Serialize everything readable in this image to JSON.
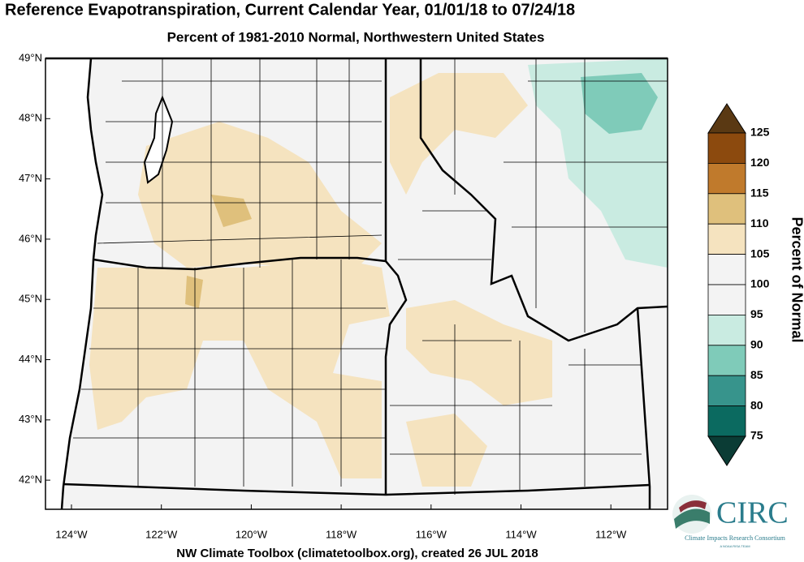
{
  "title": "Reference Evapotranspiration, Current Calendar Year, 01/01/18 to 07/24/18",
  "subtitle": "Percent of 1981-2010 Normal, Northwestern United States",
  "footer": "NW Climate Toolbox (climatetoolbox.org), created 26 JUL 2018",
  "lat_labels": [
    "49°N",
    "48°N",
    "47°N",
    "46°N",
    "45°N",
    "44°N",
    "43°N",
    "42°N"
  ],
  "lon_labels": [
    "124°W",
    "122°W",
    "120°W",
    "118°W",
    "116°W",
    "114°W",
    "112°W"
  ],
  "colorbar": {
    "title": "Percent of Normal",
    "levels": [
      125,
      120,
      115,
      110,
      105,
      100,
      95,
      90,
      85,
      80,
      75
    ],
    "colors": [
      "#5a3913",
      "#8c4a0e",
      "#c07a2c",
      "#dfc07c",
      "#f5e3bf",
      "#f3f3f3",
      "#f3f3f3",
      "#c9ebe1",
      "#7fcbb9",
      "#37948c",
      "#0b6a60",
      "#0b3c35"
    ]
  },
  "logo": {
    "name": "CIRC",
    "full_name": "Climate Impacts Research Consortium",
    "tagline": "A NOAA RISA TEAM"
  }
}
